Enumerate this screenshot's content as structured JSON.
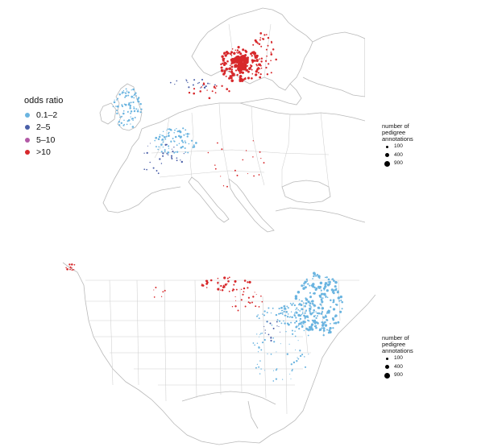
{
  "legend": {
    "odds_title": "odds ratio",
    "odds_items": [
      {
        "label": "0.1–2",
        "color": "#6ab4e0"
      },
      {
        "label": "2–5",
        "color": "#4a5fa8"
      },
      {
        "label": "5–10",
        "color": "#b25aa6"
      },
      {
        "label": ">10",
        "color": "#d7282b"
      }
    ],
    "size_title_lines": [
      "number of",
      "pedigree",
      "annotations"
    ],
    "size_items": [
      "100",
      "400",
      "900"
    ]
  },
  "maps": [
    {
      "region": "Europe"
    },
    {
      "region": "North America"
    }
  ]
}
